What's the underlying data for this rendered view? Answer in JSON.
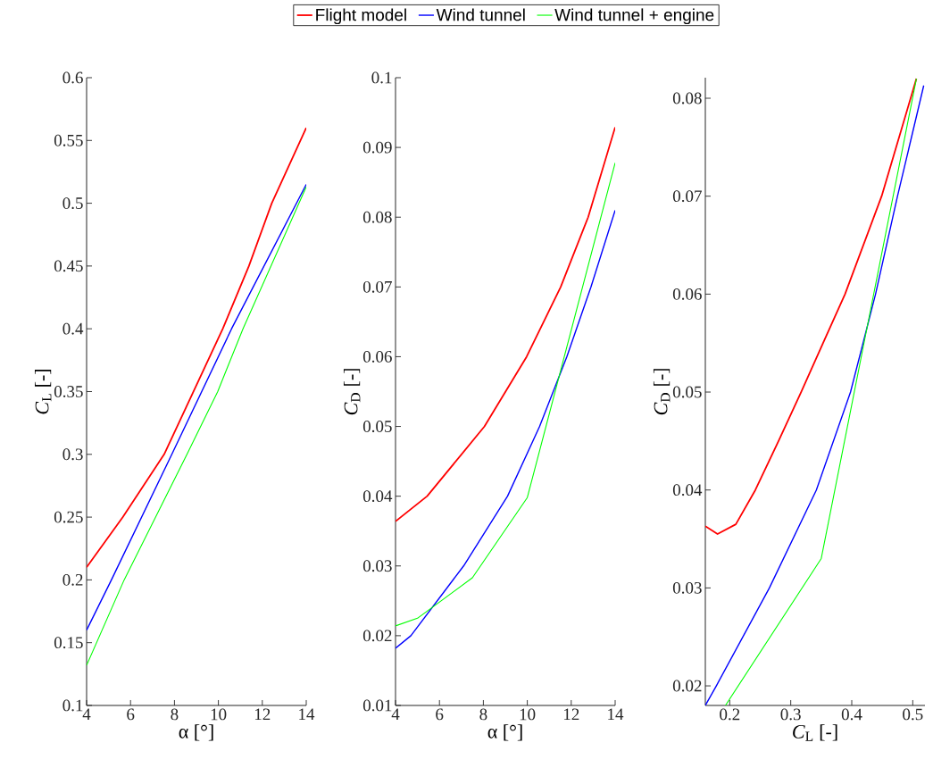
{
  "chart_data": [
    {
      "type": "line",
      "xlabel": "α [°]",
      "ylabel": "*C*$_{L}$ [-]",
      "xlim": [
        4,
        14
      ],
      "ylim": [
        0.1,
        0.6
      ],
      "xticks": [
        4,
        6,
        8,
        10,
        12,
        14
      ],
      "yticks": [
        0.1,
        0.15,
        0.2,
        0.25,
        0.3,
        0.35,
        0.4,
        0.45,
        0.5,
        0.55,
        0.6
      ],
      "legend": "top",
      "grid": false,
      "series": [
        {
          "name": "Flight model",
          "color": "#ff0000",
          "x": [
            4,
            5.65,
            7.53,
            10.2,
            11.39,
            12.43,
            14
          ],
          "values": [
            0.21,
            0.25,
            0.3,
            0.4,
            0.45,
            0.5,
            0.56
          ]
        },
        {
          "name": "Wind tunnel",
          "color": "#0000ff",
          "x": [
            4,
            5.13,
            7.88,
            10.6,
            14
          ],
          "values": [
            0.16,
            0.2,
            0.3,
            0.4,
            0.515
          ]
        },
        {
          "name": "Wind tunnel + engine",
          "color": "#00ff00",
          "x": [
            4,
            5.71,
            8.57,
            9.97,
            11.12,
            14
          ],
          "values": [
            0.132,
            0.2,
            0.3,
            0.35,
            0.4,
            0.513
          ]
        }
      ]
    },
    {
      "type": "line",
      "xlabel": "α [°]",
      "ylabel": "*C*$_{D}$ [-]",
      "xlim": [
        4,
        14
      ],
      "ylim": [
        0.01,
        0.1
      ],
      "xticks": [
        4,
        6,
        8,
        10,
        12,
        14
      ],
      "yticks": [
        0.01,
        0.02,
        0.03,
        0.04,
        0.05,
        0.06,
        0.07,
        0.08,
        0.09,
        0.1
      ],
      "grid": false,
      "series": [
        {
          "color": "#ff0000",
          "x": [
            4,
            5.44,
            8.05,
            9.97,
            11.52,
            12.77,
            14
          ],
          "values": [
            0.0364,
            0.04,
            0.05,
            0.06,
            0.07,
            0.08,
            0.0929
          ]
        },
        {
          "color": "#0000ff",
          "x": [
            4,
            4.7,
            7.1,
            9.1,
            10.56,
            11.8,
            12.9,
            14
          ],
          "values": [
            0.0182,
            0.02,
            0.03,
            0.04,
            0.05,
            0.06,
            0.07,
            0.081
          ]
        },
        {
          "color": "#00ff00",
          "x": [
            4,
            5,
            7.5,
            10,
            14
          ],
          "values": [
            0.0214,
            0.0225,
            0.0283,
            0.0398,
            0.0878
          ]
        }
      ]
    },
    {
      "type": "line",
      "xlabel": "*C*$_{L}$ [-]",
      "ylabel": "*C*$_{D}$ [-]",
      "xlim": [
        0.16,
        0.52
      ],
      "ylim": [
        0.018,
        0.0821
      ],
      "xticks": [
        0.2,
        0.3,
        0.4,
        0.5
      ],
      "yticks": [
        0.02,
        0.03,
        0.04,
        0.05,
        0.06,
        0.07,
        0.08
      ],
      "grid": false,
      "series": [
        {
          "color": "#ff0000",
          "x": [
            0.16,
            0.18,
            0.21,
            0.242,
            0.28,
            0.317,
            0.353,
            0.389,
            0.449,
            0.506
          ],
          "values": [
            0.0363,
            0.0355,
            0.0365,
            0.04,
            0.045,
            0.05,
            0.055,
            0.06,
            0.07,
            0.082
          ]
        },
        {
          "color": "#0000ff",
          "x": [
            0.16,
            0.178,
            0.265,
            0.342,
            0.398,
            0.439,
            0.475,
            0.518
          ],
          "values": [
            0.018,
            0.02,
            0.03,
            0.04,
            0.05,
            0.06,
            0.07,
            0.0813
          ]
        },
        {
          "color": "#00ff00",
          "x": [
            0.193,
            0.35,
            0.506
          ],
          "values": [
            0.018,
            0.033,
            0.082
          ]
        }
      ]
    }
  ]
}
